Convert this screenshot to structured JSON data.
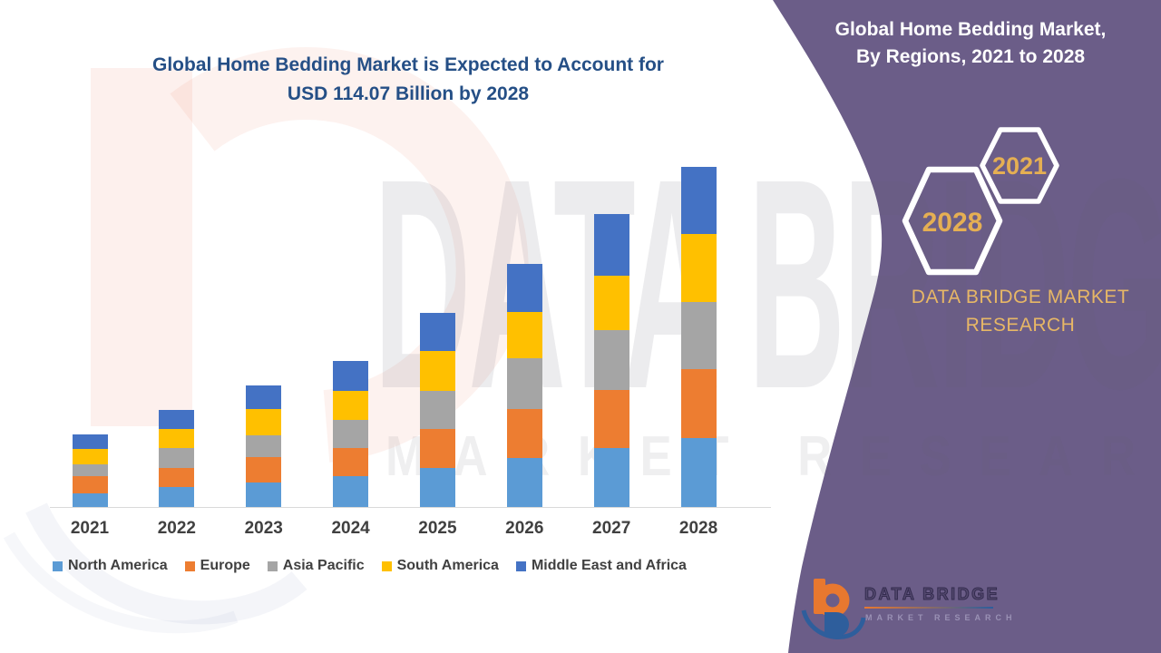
{
  "main": {
    "title_line1": "Global Home Bedding Market is Expected to Account for",
    "title_line2": "USD 114.07 Billion by 2028"
  },
  "panel": {
    "title_line1": "Global Home Bedding Market,",
    "title_line2": "By Regions, 2021 to 2028",
    "hexagon_small_label": "2021",
    "hexagon_large_label": "2028",
    "brand_line1": "DATA BRIDGE MARKET",
    "brand_line2": "RESEARCH"
  },
  "watermark": {
    "big_text": "DATA BRIDGE",
    "row_text": "MARKET RESEARCH"
  },
  "footer_logo": {
    "name": "DATA BRIDGE",
    "subtitle": "MARKET RESEARCH"
  },
  "theme": {
    "panel_purple": "#6B5D88",
    "gold": "#E5AF53",
    "title_blue": "#254F86",
    "axis_gray": "#D9D9D9",
    "label_gray": "#404040",
    "logo_orange": "#E8782F",
    "logo_blue": "#2E5E9C"
  },
  "chart_data": {
    "type": "bar",
    "stacked": true,
    "unit": "USD Billion",
    "categories": [
      "2021",
      "2022",
      "2023",
      "2024",
      "2025",
      "2026",
      "2027",
      "2028"
    ],
    "series": [
      {
        "name": "North America",
        "color": "#5B9BD5",
        "values": [
          4.5,
          6.7,
          8.3,
          10.3,
          13.1,
          16.4,
          19.8,
          23.2
        ]
      },
      {
        "name": "Europe",
        "color": "#ED7D31",
        "values": [
          5.7,
          6.5,
          8.3,
          9.4,
          13.2,
          16.4,
          19.5,
          22.9
        ]
      },
      {
        "name": "Asia Pacific",
        "color": "#A5A5A5",
        "values": [
          4.2,
          6.6,
          7.4,
          9.5,
          12.7,
          17.0,
          20.1,
          22.7
        ]
      },
      {
        "name": "South America",
        "color": "#FFC000",
        "values": [
          5.0,
          6.4,
          8.8,
          9.9,
          13.2,
          15.5,
          18.2,
          22.9
        ]
      },
      {
        "name": "Middle East and Africa",
        "color": "#4472C4",
        "values": [
          4.9,
          6.4,
          7.9,
          9.9,
          12.8,
          16.1,
          20.6,
          22.3
        ]
      }
    ],
    "totals_estimated": [
      24.3,
      32.6,
      40.7,
      49.0,
      65.0,
      81.4,
      98.2,
      114.07
    ],
    "ylim": [
      0,
      114.07
    ],
    "xlabel": "",
    "ylabel": "",
    "grid": false,
    "legend_position": "bottom"
  }
}
